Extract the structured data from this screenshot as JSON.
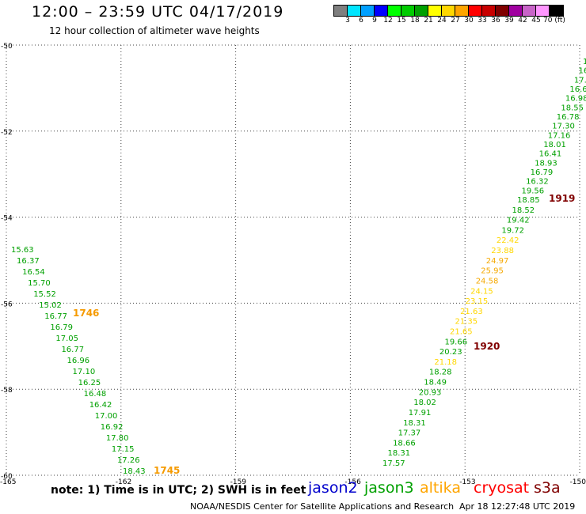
{
  "header": {
    "title": "12:00 – 23:59 UTC 04/17/2019",
    "subtitle": "12 hour collection of altimeter wave heights"
  },
  "colorbar": {
    "colors": [
      "#7f7f7f",
      "#00e5ff",
      "#00a0ff",
      "#0000ff",
      "#00ff00",
      "#00cc00",
      "#00a000",
      "#ffff00",
      "#ffd700",
      "#ffa500",
      "#ff0000",
      "#c80000",
      "#800000",
      "#a000a0",
      "#c864c8",
      "#ff96ff",
      "#000000"
    ],
    "labels": [
      "3",
      "6",
      "9",
      "12",
      "15",
      "18",
      "21",
      "24",
      "27",
      "30",
      "33",
      "36",
      "39",
      "42",
      "45",
      "70 (ft)"
    ]
  },
  "map": {
    "lon_ticks": [
      "-165",
      "-162",
      "-159",
      "-156",
      "-153",
      "-150"
    ],
    "lat_ticks": [
      "-50",
      "-52",
      "-54",
      "-56",
      "-58",
      "-60"
    ],
    "lon_range": [
      -165,
      -150
    ],
    "lat_range": [
      -60,
      -50
    ],
    "grid": "dotted"
  },
  "tracks": {
    "left": {
      "labels": [
        {
          "text": "15.63",
          "color": "#00a000"
        },
        {
          "text": "16.37",
          "color": "#00a000"
        },
        {
          "text": "16.54",
          "color": "#00a000"
        },
        {
          "text": "15.70",
          "color": "#00a000"
        },
        {
          "text": "15.52",
          "color": "#00a000"
        },
        {
          "text": "15.02",
          "color": "#00a000"
        },
        {
          "text": "16.77",
          "color": "#00a000"
        },
        {
          "text": "16.79",
          "color": "#00a000"
        },
        {
          "text": "17.05",
          "color": "#00a000"
        },
        {
          "text": "16.77",
          "color": "#00a000"
        },
        {
          "text": "16.96",
          "color": "#00a000"
        },
        {
          "text": "17.10",
          "color": "#00a000"
        },
        {
          "text": "16.25",
          "color": "#00a000"
        },
        {
          "text": "16.48",
          "color": "#00a000"
        },
        {
          "text": "16.42",
          "color": "#00a000"
        },
        {
          "text": "17.00",
          "color": "#00a000"
        },
        {
          "text": "16.92",
          "color": "#00a000"
        },
        {
          "text": "17.80",
          "color": "#00a000"
        },
        {
          "text": "17.15",
          "color": "#00a000"
        },
        {
          "text": "17.26",
          "color": "#00a000"
        },
        {
          "text": "18.43",
          "color": "#00a000"
        }
      ],
      "times": [
        {
          "text": "1746",
          "color": "#f59a00"
        },
        {
          "text": "1745",
          "color": "#f59a00"
        }
      ]
    },
    "right": {
      "labels": [
        {
          "text": "1",
          "color": "#00a000"
        },
        {
          "text": "16",
          "color": "#00a000"
        },
        {
          "text": "17.",
          "color": "#00a000"
        },
        {
          "text": "16.6",
          "color": "#00a000"
        },
        {
          "text": "16.98",
          "color": "#00a000"
        },
        {
          "text": "18.55",
          "color": "#00a000"
        },
        {
          "text": "16.78",
          "color": "#00a000"
        },
        {
          "text": "17.30",
          "color": "#00a000"
        },
        {
          "text": "17.16",
          "color": "#00a000"
        },
        {
          "text": "18.01",
          "color": "#00a000"
        },
        {
          "text": "16.41",
          "color": "#00a000"
        },
        {
          "text": "18.93",
          "color": "#00a000"
        },
        {
          "text": "16.79",
          "color": "#00a000"
        },
        {
          "text": "16.32",
          "color": "#00a000"
        },
        {
          "text": "19.56",
          "color": "#00a000"
        },
        {
          "text": "18.85",
          "color": "#00a000"
        },
        {
          "text": "18.52",
          "color": "#00a000"
        },
        {
          "text": "19.42",
          "color": "#00a000"
        },
        {
          "text": "19.72",
          "color": "#00a000"
        },
        {
          "text": "22.42",
          "color": "#ffd700"
        },
        {
          "text": "23.88",
          "color": "#ffd700"
        },
        {
          "text": "24.97",
          "color": "#f5a800"
        },
        {
          "text": "25.95",
          "color": "#f5a800"
        },
        {
          "text": "24.58",
          "color": "#f5a800"
        },
        {
          "text": "24.15",
          "color": "#ffd700"
        },
        {
          "text": "23.15",
          "color": "#ffd700"
        },
        {
          "text": "21.63",
          "color": "#ffd700"
        },
        {
          "text": "21.35",
          "color": "#ffd700"
        },
        {
          "text": "21.65",
          "color": "#ffd700"
        },
        {
          "text": "19.66",
          "color": "#00a000"
        },
        {
          "text": "20.23",
          "color": "#00a000"
        },
        {
          "text": "21.18",
          "color": "#ffd700"
        },
        {
          "text": "18.28",
          "color": "#00a000"
        },
        {
          "text": "18.49",
          "color": "#00a000"
        },
        {
          "text": "20.93",
          "color": "#00a000"
        },
        {
          "text": "18.02",
          "color": "#00a000"
        },
        {
          "text": "17.91",
          "color": "#00a000"
        },
        {
          "text": "18.31",
          "color": "#00a000"
        },
        {
          "text": "17.37",
          "color": "#00a000"
        },
        {
          "text": "18.66",
          "color": "#00a000"
        },
        {
          "text": "18.31",
          "color": "#00a000"
        },
        {
          "text": "17.57",
          "color": "#00a000"
        }
      ],
      "times": [
        {
          "text": "1919",
          "color": "#800000"
        },
        {
          "text": "1920",
          "color": "#800000"
        }
      ]
    }
  },
  "footer": {
    "note": "note:  1) Time is in UTC;  2) SWH is in feet",
    "legend": [
      {
        "text": "jason2",
        "color": "#0000cc"
      },
      {
        "text": "jason3",
        "color": "#00a000"
      },
      {
        "text": "altika",
        "color": "#ffa500"
      },
      {
        "text": "cryosat",
        "color": "#ff0000"
      },
      {
        "text": "s3a",
        "color": "#800000"
      }
    ],
    "credit": "NOAA/NESDIS Center for Satellite Applications and Research",
    "timestamp": "Apr 18 12:27:48 UTC 2019"
  }
}
